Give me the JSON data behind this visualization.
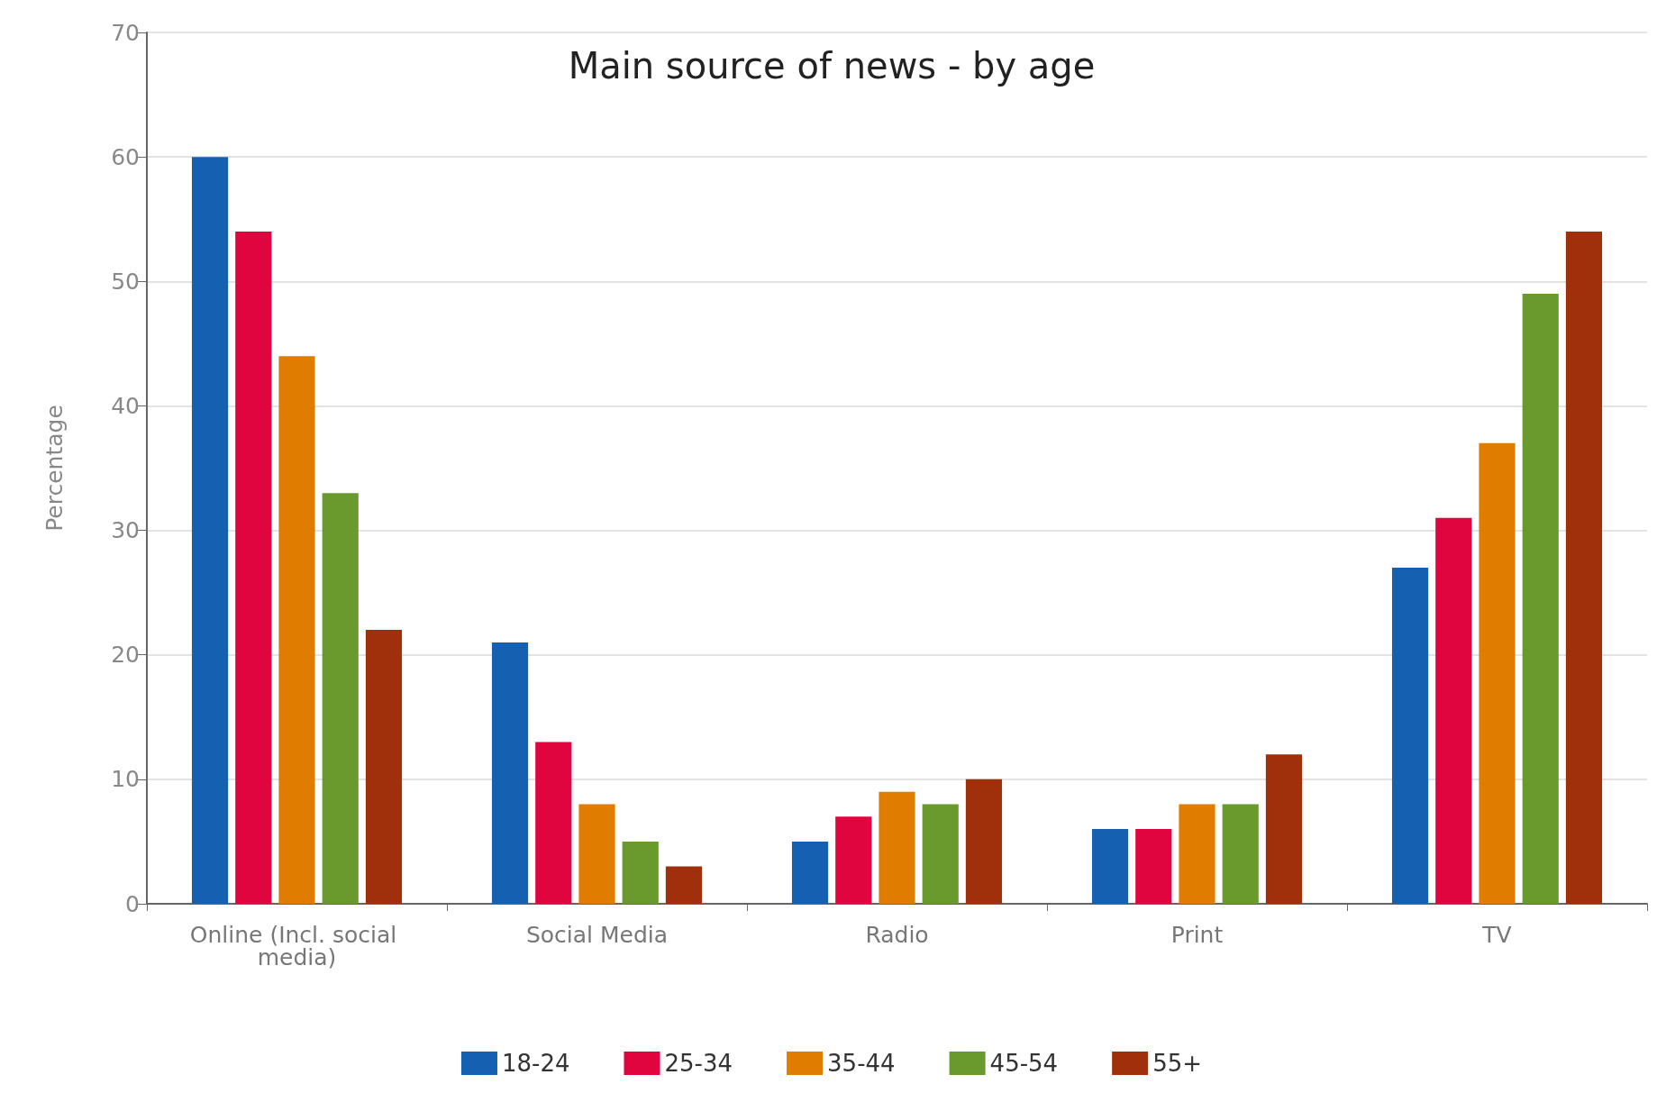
{
  "chart_data": {
    "type": "bar",
    "title": "Main source of news - by age",
    "ylabel": "Percentage",
    "categories": [
      "Online (Incl. social media)",
      "Social Media",
      "Radio",
      "Print",
      "TV"
    ],
    "series": [
      {
        "name": "18-24",
        "color": "#1560b0",
        "values": [
          60,
          21,
          5,
          6,
          27
        ]
      },
      {
        "name": "25-34",
        "color": "#e0053f",
        "values": [
          54,
          13,
          7,
          6,
          31
        ]
      },
      {
        "name": "35-44",
        "color": "#e07c00",
        "values": [
          44,
          8,
          9,
          8,
          37
        ]
      },
      {
        "name": "45-54",
        "color": "#6a9a2e",
        "values": [
          33,
          5,
          8,
          8,
          49
        ]
      },
      {
        "name": "55+",
        "color": "#a0300b",
        "values": [
          22,
          3,
          10,
          12,
          54
        ]
      }
    ],
    "ylim": [
      0,
      70
    ],
    "yticks": [
      0,
      10,
      20,
      30,
      40,
      50,
      60,
      70
    ],
    "grid": "y",
    "legend": "bottom"
  }
}
